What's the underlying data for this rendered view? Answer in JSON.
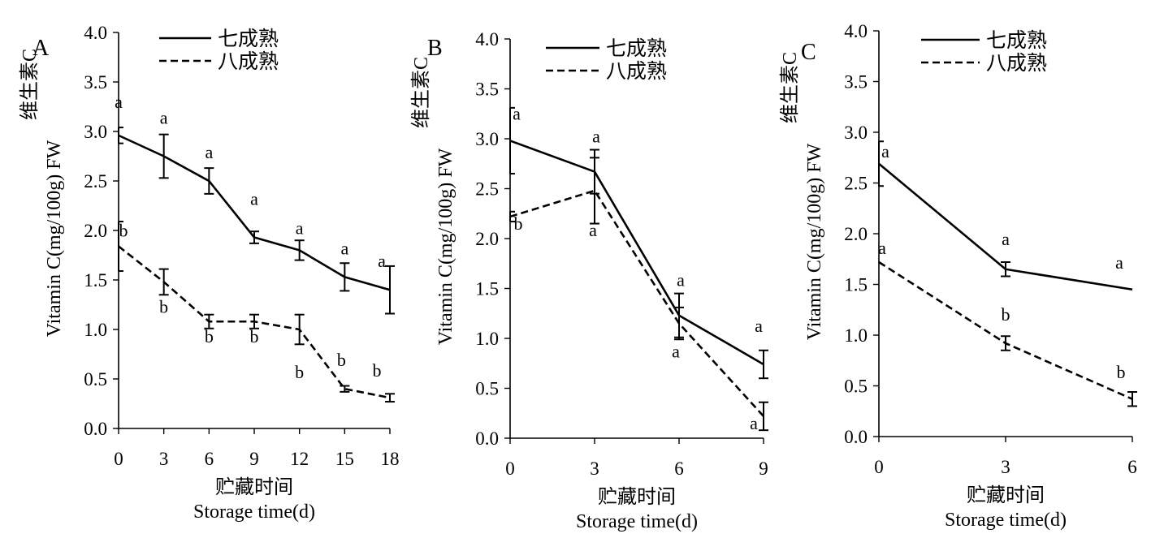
{
  "chart_data": [
    {
      "panel": "A",
      "type": "line",
      "xlabel": "贮藏时间",
      "xlabel2": "Storage time(d)",
      "ylabel": "维生素C",
      "ylabel2": "Vitamin C(mg/100g) FW",
      "xticks": [
        "0",
        "3",
        "6",
        "9",
        "12",
        "15",
        "18"
      ],
      "yticks": [
        "0.0",
        "0.5",
        "1.0",
        "1.5",
        "2.0",
        "2.5",
        "3.0",
        "3.5",
        "4.0"
      ],
      "xlim": [
        0,
        18
      ],
      "ylim": [
        0,
        4
      ],
      "legend_position": "top",
      "series": [
        {
          "name": "七成熟",
          "style": "solid",
          "x": [
            0,
            3,
            6,
            9,
            12,
            15,
            18
          ],
          "y": [
            2.96,
            2.75,
            2.5,
            1.93,
            1.8,
            1.53,
            1.4
          ],
          "err": [
            0.08,
            0.22,
            0.13,
            0.06,
            0.1,
            0.14,
            0.24
          ],
          "labels": [
            "a",
            "a",
            "a",
            "a",
            "a",
            "a",
            "a"
          ]
        },
        {
          "name": "八成熟",
          "style": "dashed",
          "x": [
            0,
            3,
            6,
            9,
            12,
            15,
            18
          ],
          "y": [
            1.84,
            1.48,
            1.08,
            1.08,
            1.0,
            0.4,
            0.31
          ],
          "err": [
            0.25,
            0.13,
            0.07,
            0.07,
            0.15,
            0.03,
            0.04
          ],
          "labels": [
            "b",
            "b",
            "b",
            "b",
            "b",
            "b",
            "b"
          ]
        }
      ]
    },
    {
      "panel": "B",
      "type": "line",
      "xlabel": "贮藏时间",
      "xlabel2": "Storage time(d)",
      "ylabel": "维生素C",
      "ylabel2": "Vitamin C(mg/100g) FW",
      "xticks": [
        "0",
        "3",
        "6",
        "9"
      ],
      "yticks": [
        "0.0",
        "0.5",
        "1.0",
        "1.5",
        "2.0",
        "2.5",
        "3.0",
        "3.5",
        "4.0"
      ],
      "xlim": [
        0,
        9
      ],
      "ylim": [
        0,
        4
      ],
      "legend_position": "top",
      "series": [
        {
          "name": "七成熟",
          "style": "solid",
          "x": [
            0,
            3,
            6,
            9
          ],
          "y": [
            2.98,
            2.67,
            1.23,
            0.74
          ],
          "err": [
            0.33,
            0.22,
            0.22,
            0.14
          ],
          "labels": [
            "a",
            "a",
            "a",
            "a"
          ]
        },
        {
          "name": "八成熟",
          "style": "dashed",
          "x": [
            0,
            3,
            6,
            9
          ],
          "y": [
            2.22,
            2.48,
            1.15,
            0.22
          ],
          "err": [
            0.05,
            0.33,
            0.16,
            0.14
          ],
          "labels": [
            "b",
            "a",
            "a",
            "a"
          ]
        }
      ]
    },
    {
      "panel": "C",
      "type": "line",
      "xlabel": "贮藏时间",
      "xlabel2": "Storage time(d)",
      "ylabel": "维生素C",
      "ylabel2": "Vitamin C(mg/100g) FW",
      "xticks": [
        "0",
        "3",
        "6"
      ],
      "yticks": [
        "0.0",
        "0.5",
        "1.0",
        "1.5",
        "2.0",
        "2.5",
        "3.0",
        "3.5",
        "4.0"
      ],
      "xlim": [
        0,
        6
      ],
      "ylim": [
        0,
        4
      ],
      "legend_position": "top",
      "series": [
        {
          "name": "七成熟",
          "style": "solid",
          "x": [
            0,
            3,
            6
          ],
          "y": [
            2.69,
            1.65,
            1.45
          ],
          "err": [
            0.22,
            0.07,
            0.0
          ],
          "labels": [
            "a",
            "a",
            "a"
          ]
        },
        {
          "name": "八成熟",
          "style": "dashed",
          "x": [
            0,
            3,
            6
          ],
          "y": [
            1.72,
            0.92,
            0.37
          ],
          "err": [
            0.0,
            0.07,
            0.07
          ],
          "labels": [
            "a",
            "b",
            "b"
          ]
        }
      ]
    }
  ]
}
